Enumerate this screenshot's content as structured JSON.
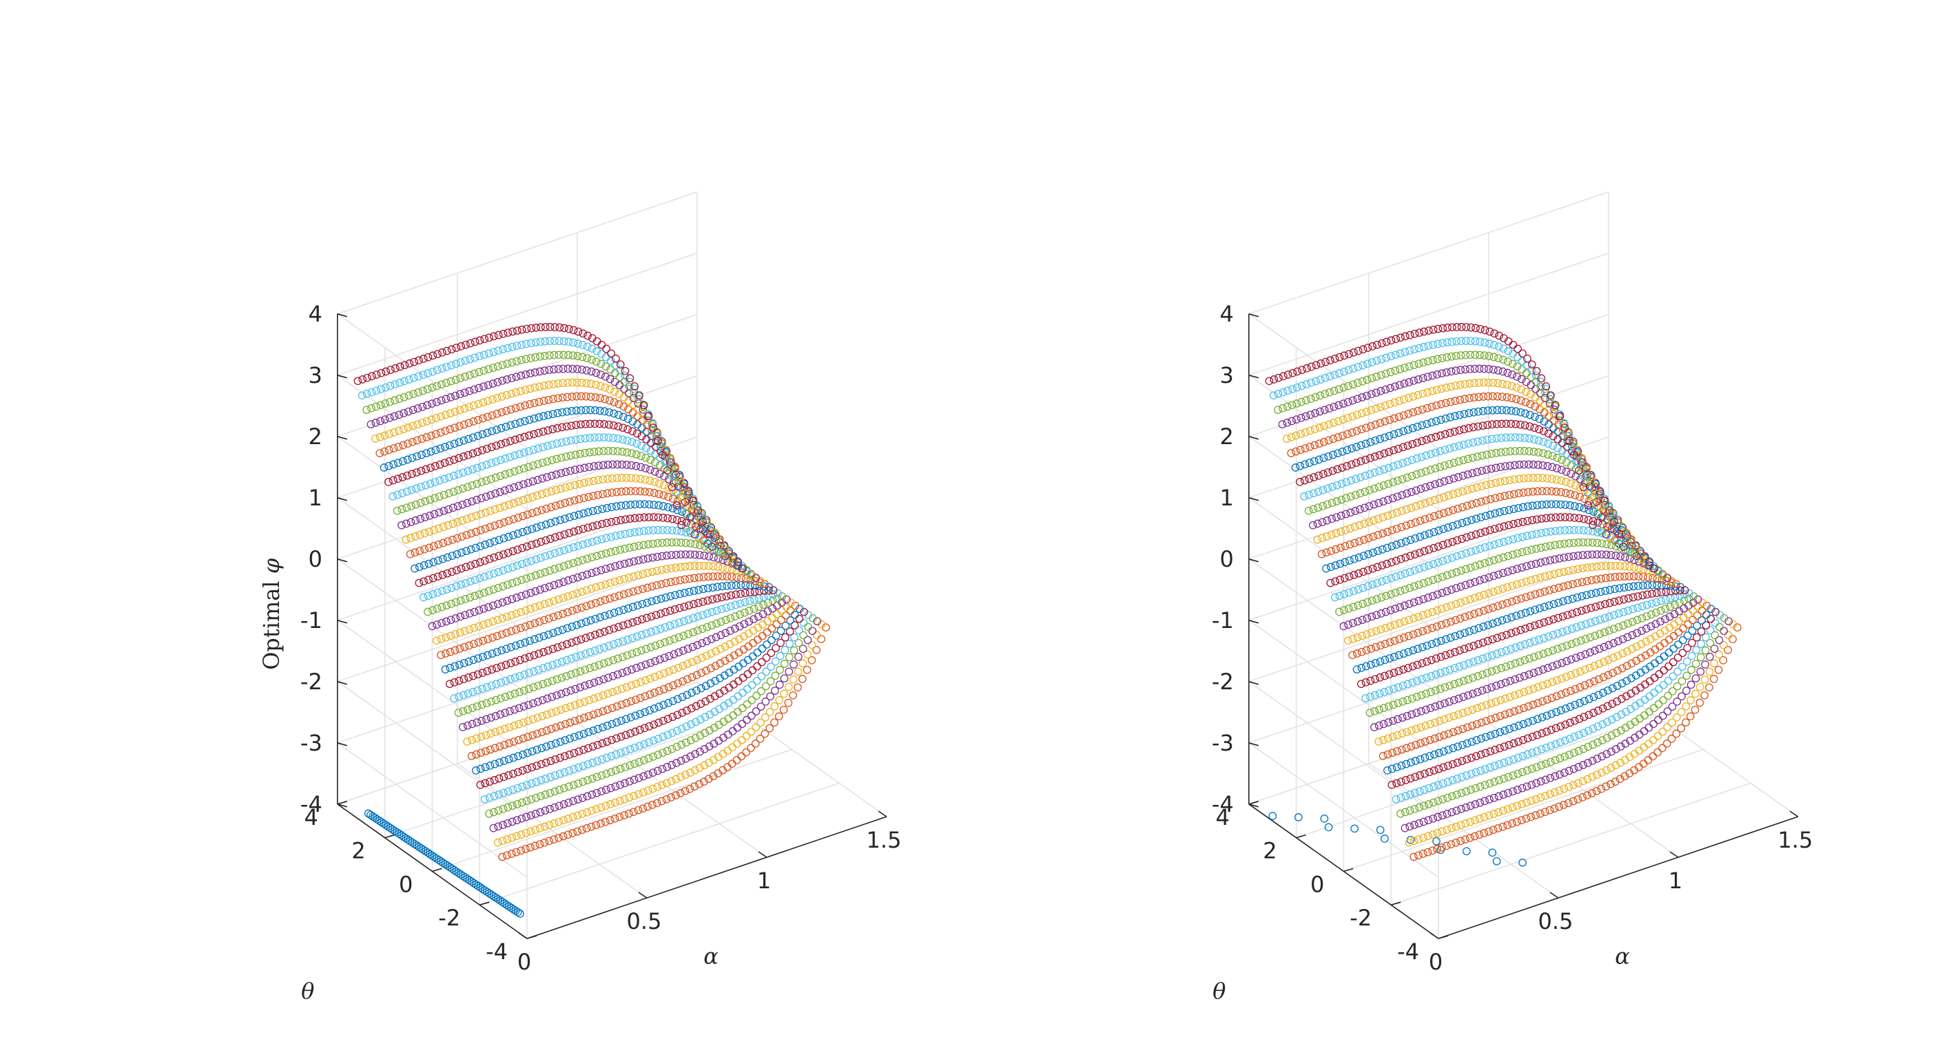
{
  "figure": {
    "panel_count": 2
  },
  "chart_data": [
    {
      "type": "scatter",
      "view": "3d",
      "title": "",
      "xlabel": "α",
      "ylabel": "θ",
      "zlabel": "Optimal φ",
      "zlabel_prefix": "Optimal",
      "zlabel_symbol": "φ",
      "xlim": [
        0,
        1.5
      ],
      "ylim": [
        -4,
        4
      ],
      "zlim": [
        -4,
        4
      ],
      "xticks": [
        "0",
        "0.5",
        "1",
        "1.5"
      ],
      "yticks": [
        "-4",
        "-2",
        "0",
        "2",
        "4"
      ],
      "zticks": [
        "-4",
        "-3",
        "-2",
        "-1",
        "0",
        "1",
        "2",
        "3",
        "4"
      ],
      "grid": true,
      "marker": "open-circle",
      "colors": [
        "#0072BD",
        "#D95319",
        "#EDB120",
        "#7E2F8E",
        "#77AC30",
        "#4DBEEE",
        "#A2142F"
      ],
      "series_note": "many series; phi_opt(alpha) for grid of theta values, wrapped to [-pi, pi]",
      "series_count": 35,
      "theta_range": [
        -3.14,
        3.14
      ],
      "alpha_range": [
        0,
        1.35
      ],
      "first_series_style": "line"
    },
    {
      "type": "scatter",
      "view": "3d",
      "title": "",
      "xlabel": "α",
      "ylabel": "θ",
      "zlabel": "",
      "xlim": [
        0,
        1.5
      ],
      "ylim": [
        -4,
        4
      ],
      "zlim": [
        -4,
        4
      ],
      "xticks": [
        "0",
        "0.5",
        "1",
        "1.5"
      ],
      "yticks": [
        "-4",
        "-2",
        "0",
        "2",
        "4"
      ],
      "zticks": [
        "-4",
        "-3",
        "-2",
        "-1",
        "0",
        "1",
        "2",
        "3",
        "4"
      ],
      "grid": true,
      "marker": "open-circle",
      "colors": [
        "#0072BD",
        "#D95319",
        "#EDB120",
        "#7E2F8E",
        "#77AC30",
        "#4DBEEE",
        "#A2142F"
      ],
      "series_note": "same as left panel but first series shown as sparse diagonal + scattered points",
      "series_count": 35,
      "theta_range": [
        -3.14,
        3.14
      ],
      "alpha_range": [
        0,
        1.35
      ],
      "first_series_style": "sparse"
    }
  ]
}
